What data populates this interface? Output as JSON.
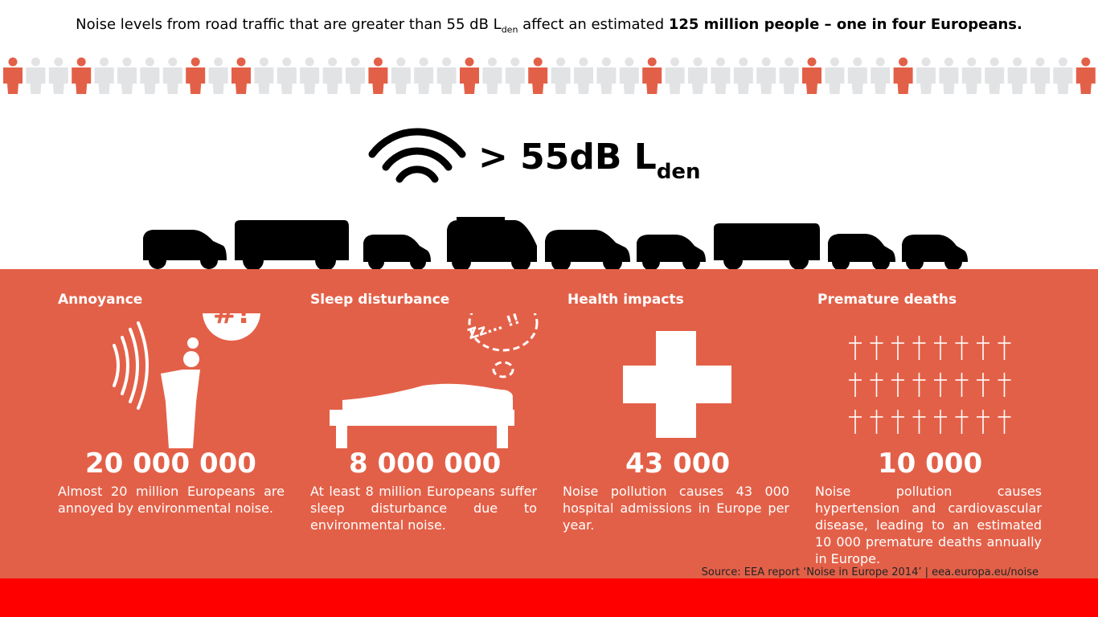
{
  "headline": {
    "lead": "Noise levels from road traffic that are greater than 55 dB L",
    "lead_sub": "den",
    "middle": " affect an estimated ",
    "emphasis": "125 million people – one in four Europeans."
  },
  "people_row": {
    "highlight_color": "#e36048",
    "base_color": "#e2e3e5",
    "icon": "person-icon"
  },
  "noise_threshold": {
    "text": "> 55dB L",
    "sub": "den",
    "icon": "sound-waves-icon"
  },
  "vehicles": {
    "icon": "vehicle-icon"
  },
  "colors": {
    "panel": "#e36048",
    "bottom_bar": "#ff0000",
    "text_on_panel": "#ffffff"
  },
  "sections": [
    {
      "title": "Annoyance",
      "number": "20 000 000",
      "text": "Almost 20 million Europeans are annoyed by environmental noise.",
      "icon": "annoyed-person-icon",
      "bubble_text": "#!"
    },
    {
      "title": "Sleep disturbance",
      "number": "8 000 000",
      "text": "At least 8 million Europeans suffer sleep disturbance due to environmental noise.",
      "icon": "sleeping-person-icon",
      "bubble_text": "Zz... !!"
    },
    {
      "title": "Health impacts",
      "number": "43 000",
      "text": "Noise pollution causes 43 000 hospital admissions in Europe per year.",
      "icon": "medical-cross-icon"
    },
    {
      "title": "Premature deaths",
      "number": "10 000",
      "text": "Noise pollution causes hypertension and cardiovascular disease, leading to an estimated 10 000 premature deaths annually in Europe.",
      "icon": "grave-cross-icon"
    }
  ],
  "source": "Source: EEA report ‘Noise in Europe 2014’ | eea.europa.eu/noise"
}
